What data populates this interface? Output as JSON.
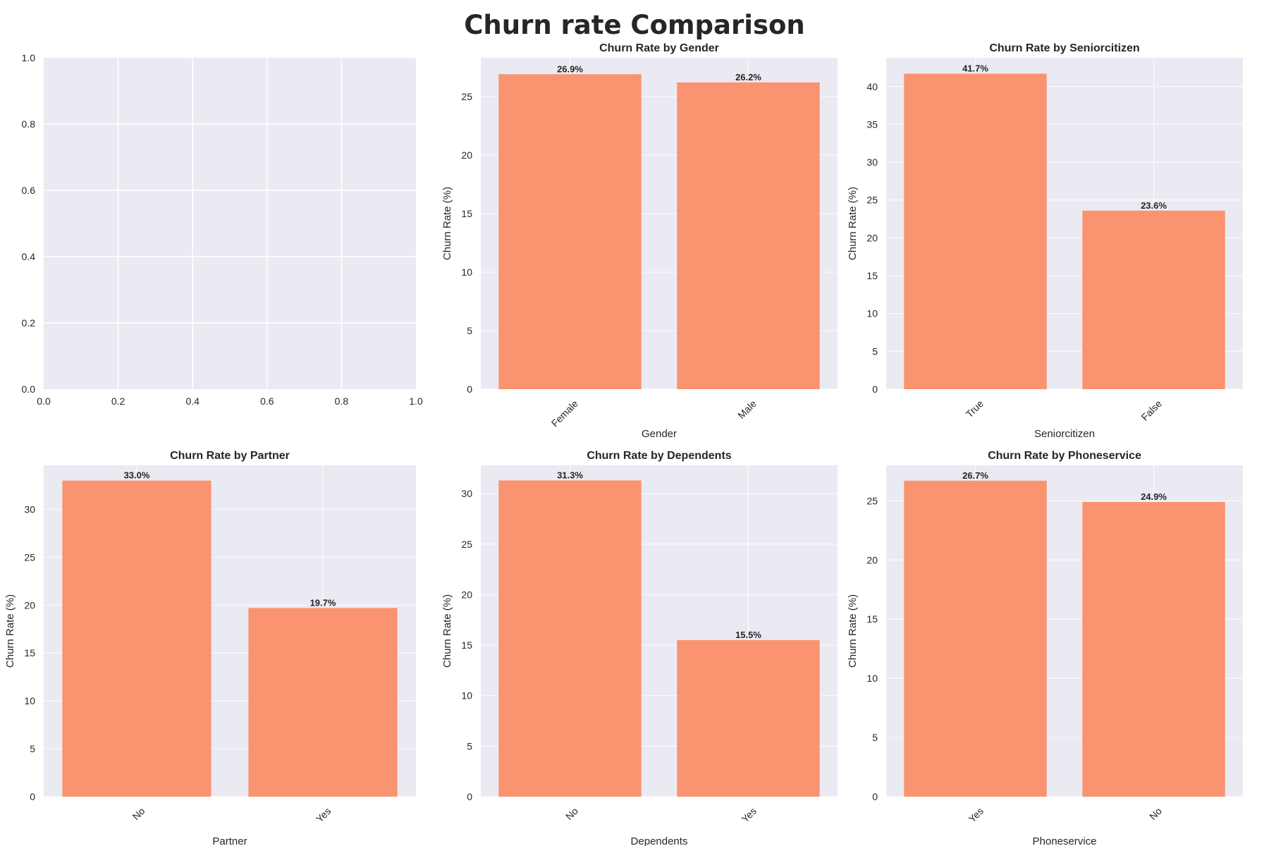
{
  "figure": {
    "title": "Churn rate Comparison",
    "bar_color": "#fa9370",
    "panel_bg": "#eaeaf2",
    "grid_color": "#ffffff"
  },
  "chart_data": [
    {
      "type": "empty",
      "title": "",
      "xlabel": "",
      "ylabel": "",
      "xlim": [
        0,
        1
      ],
      "ylim": [
        0,
        1
      ],
      "xticks": [
        "0.0",
        "0.2",
        "0.4",
        "0.6",
        "0.8",
        "1.0"
      ],
      "yticks": [
        "0.0",
        "0.2",
        "0.4",
        "0.6",
        "0.8",
        "1.0"
      ],
      "grid": true
    },
    {
      "type": "bar",
      "title": "Churn Rate by Gender",
      "xlabel": "Gender",
      "ylabel": "Churn Rate (%)",
      "categories": [
        "Female",
        "Male"
      ],
      "values": [
        26.9,
        26.2
      ],
      "labels": [
        "26.9%",
        "26.2%"
      ],
      "ylim": [
        0,
        28.3
      ],
      "yticks": [
        0,
        5,
        10,
        15,
        20,
        25
      ],
      "grid": true
    },
    {
      "type": "bar",
      "title": "Churn Rate by Seniorcitizen",
      "xlabel": "Seniorcitizen",
      "ylabel": "Churn Rate (%)",
      "categories": [
        "True",
        "False"
      ],
      "values": [
        41.7,
        23.6
      ],
      "labels": [
        "41.7%",
        "23.6%"
      ],
      "ylim": [
        0,
        43.8
      ],
      "yticks": [
        0,
        5,
        10,
        15,
        20,
        25,
        30,
        35,
        40
      ],
      "grid": true
    },
    {
      "type": "bar",
      "title": "Churn Rate by Partner",
      "xlabel": "Partner",
      "ylabel": "Churn Rate (%)",
      "categories": [
        "No",
        "Yes"
      ],
      "values": [
        33.0,
        19.7
      ],
      "labels": [
        "33.0%",
        "19.7%"
      ],
      "ylim": [
        0,
        34.6
      ],
      "yticks": [
        0,
        5,
        10,
        15,
        20,
        25,
        30
      ],
      "grid": true
    },
    {
      "type": "bar",
      "title": "Churn Rate by Dependents",
      "xlabel": "Dependents",
      "ylabel": "Churn Rate (%)",
      "categories": [
        "No",
        "Yes"
      ],
      "values": [
        31.3,
        15.5
      ],
      "labels": [
        "31.3%",
        "15.5%"
      ],
      "ylim": [
        0,
        32.8
      ],
      "yticks": [
        0,
        5,
        10,
        15,
        20,
        25,
        30
      ],
      "grid": true
    },
    {
      "type": "bar",
      "title": "Churn Rate by Phoneservice",
      "xlabel": "Phoneservice",
      "ylabel": "Churn Rate (%)",
      "categories": [
        "Yes",
        "No"
      ],
      "values": [
        26.7,
        24.9
      ],
      "labels": [
        "26.7%",
        "24.9%"
      ],
      "ylim": [
        0,
        28.0
      ],
      "yticks": [
        0,
        5,
        10,
        15,
        20,
        25
      ],
      "grid": true
    }
  ]
}
